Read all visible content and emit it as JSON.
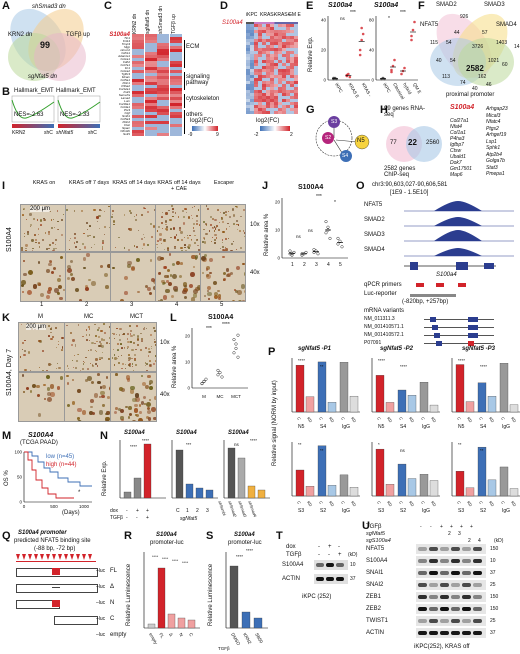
{
  "panels": {
    "A": {
      "label": "A",
      "sets": [
        "shSmad3 dn",
        "KRN2 dn",
        "TGFβ up",
        "sgNfat5 dn"
      ],
      "center": "99"
    },
    "B": {
      "label": "B",
      "titles": [
        "Hallmark_EMT",
        "Hallmark_EMT"
      ],
      "nes": [
        "NES=-2.63",
        "NES=-2.33"
      ],
      "sub": [
        "KRN2",
        "shC",
        "shNfat5",
        "shC"
      ]
    },
    "C": {
      "label": "C",
      "cols": [
        "KRN2 dn",
        "sgNfat5 dn",
        "shSmad3 dn",
        "TGFβ up"
      ],
      "genes": [
        "S100a4",
        "Tln1",
        "Krt14",
        "Timp3",
        "Mgp",
        "Hmcn2",
        "Cdh11",
        "Adamts1",
        "Col1a1",
        "Cdh2",
        "Col7a1",
        "Fn1",
        "Col1a2",
        "Tgfbr3",
        "Mcam",
        "Col5a1",
        "Fbln1",
        "P4ha2",
        "Col12a1",
        "Fstl1",
        "Sema7a",
        "Lama2",
        "Lum",
        "Col16a1",
        "Col3a1",
        "Ptx3",
        "Ctgf",
        "Sntb1",
        "Col5a3",
        "Fbln2",
        "Ctsk",
        "Sparc",
        "Ofml2b",
        "Sulf1"
      ],
      "groups": [
        "ECM",
        "signaling pathway",
        "cytoskeleton",
        "others"
      ],
      "scale": {
        "title": "log2(FC)",
        "min": "-9",
        "max": "9"
      }
    },
    "D": {
      "label": "D",
      "cols": [
        "iKPC",
        "KRAS-",
        "KRAS+",
        "GM E"
      ],
      "gene": "S100a4",
      "scale": {
        "title": "log2(FC)",
        "min": "-2",
        "max": "2"
      }
    },
    "E": {
      "label": "E",
      "title": "S100a4",
      "ylabel": "Relative Exp.",
      "left": {
        "cats": [
          "iKPC",
          "KRAS E",
          "KRAS -"
        ],
        "ticks": [
          "0",
          "20",
          "40"
        ]
      },
      "right": {
        "cats": [
          "iKPC",
          "Classical",
          "hybrid",
          "QM E"
        ],
        "ticks": [
          "0",
          "40",
          "80"
        ]
      },
      "sig": [
        "ns",
        "***",
        "*",
        "***"
      ]
    },
    "F": {
      "label": "F",
      "sets": [
        "SMAD2",
        "SMAD3",
        "NFAT5",
        "SMAD4"
      ],
      "numbers": [
        "926",
        "44",
        "57",
        "115",
        "54",
        "3726",
        "1403",
        "14",
        "40",
        "54",
        "2582",
        "1021",
        "113",
        "162",
        "60",
        "74",
        "40",
        "46"
      ],
      "center": "2582",
      "caption": "proximal promoter"
    },
    "G": {
      "label": "G",
      "nodes": [
        "S3",
        "S2",
        "N5",
        "S4"
      ]
    },
    "H": {
      "label": "H",
      "top": "99 genes RNA-seq",
      "left": "77",
      "mid": "22",
      "right": "2560",
      "bottom": "2582 genes ChIP-seq",
      "genes1": [
        "S100a4",
        "Col27a1",
        "Nfat4",
        "Col1a1",
        "P4ha3",
        "Igfbp7",
        "Ctsw",
        "Ubald1",
        "Dok7",
        "Gm17501",
        "Map6"
      ],
      "genes2": [
        "Arhgap23",
        "Mical3",
        "Nfatc4",
        "Ptgs2",
        "Arhgef19",
        "Lsp1",
        "Sphk1",
        "Atp2b4",
        "Golga7b",
        "Stat3",
        "Pmepa1"
      ]
    },
    "I": {
      "label": "I",
      "cols": [
        "KRAS on",
        "KRAS off 7 days",
        "KRAS off 14 days",
        "KRAS off 14 days + CAE",
        "Escaper"
      ],
      "scale": "200 μm",
      "row": "S100A4",
      "mag": [
        "10x",
        "40x"
      ],
      "nums": [
        "1",
        "2",
        "3",
        "4",
        "5"
      ]
    },
    "J": {
      "label": "J",
      "title": "S100A4",
      "ylabel": "Relative area %",
      "ticks": [
        "0",
        "10",
        "20"
      ],
      "cats": [
        "1",
        "2",
        "3",
        "4",
        "5"
      ],
      "sig": [
        "ns",
        "ns",
        "***",
        "*"
      ]
    },
    "K": {
      "label": "K",
      "cols": [
        "M",
        "MC",
        "MCT"
      ],
      "scale": "200 μm",
      "row": "S100A4, Day 7",
      "mag": [
        "10x",
        "40x"
      ]
    },
    "L": {
      "label": "L",
      "title": "S100A4",
      "ylabel": "Relative area %",
      "cats": [
        "M",
        "MC",
        "MCT"
      ],
      "ticks": [
        "0",
        "10",
        "20"
      ],
      "sig": [
        "***",
        "****"
      ]
    },
    "M": {
      "label": "M",
      "title": "S100A4",
      "sub": "(TCGA PAAD)",
      "ylabel": "OS %",
      "legend": [
        "low (n=45)",
        "high (n=44)"
      ],
      "ticks": [
        "0",
        "50",
        "100"
      ],
      "x": [
        "0",
        "500",
        "1000"
      ],
      "xlabel": "(Days)",
      "p": "*",
      "colors": {
        "low": "#3d6fb6",
        "high": "#d2232a"
      }
    },
    "N": {
      "label": "N",
      "titles": [
        "S100a4",
        "S100a4",
        "S100a4"
      ],
      "ylabel": "Relative Exp.",
      "row1": [
        "dox",
        "TGFβ"
      ],
      "signs": [
        "-",
        "+",
        "+",
        "-",
        "-",
        "+"
      ],
      "cats2": [
        "C",
        "1",
        "2",
        "3"
      ],
      "sub2": "sgNfat5",
      "cats3": [
        "shScmbl",
        "shSmad2",
        "shSmad3",
        "shSmad4"
      ],
      "sig": [
        "****",
        "****",
        "***",
        "ns",
        "****"
      ]
    },
    "O": {
      "label": "O",
      "locus": "chr3:90,603,027-90,606,581",
      "range": "[1E9 - 1.5E10]",
      "tracks": [
        "NFAT5",
        "SMAD2",
        "SMAD3",
        "SMAD4"
      ],
      "gene": "S100a4",
      "primers": "qPCR primers",
      "luc": "Luc-reporter",
      "lucRange": "(-820bp, +257bp)",
      "variants_title": "mRNA variants",
      "variants": [
        "NM_011311.3",
        "NM_001410571.1",
        "NM_001410572.1",
        "P07091"
      ]
    },
    "P": {
      "label": "P",
      "titles": [
        "sgNfat5 -P1",
        "sgNfat5 -P2",
        "sgNfat5 -P3"
      ],
      "ylabel": "Relative signal (NORM by input)",
      "ip1": [
        "N5",
        "S4",
        "IgG"
      ],
      "ip2": [
        "S3",
        "S2",
        "IgG"
      ],
      "ck": [
        "C",
        "KD"
      ],
      "sig": [
        "****",
        "**",
        "****",
        "****",
        "****",
        "****",
        "**",
        "**",
        "*",
        "ns",
        "**",
        "**"
      ]
    },
    "Q": {
      "label": "Q",
      "title": "S100a4 promoter",
      "sub": "predicted NFAT5 binding site",
      "site": "(-88 bp, -72 bp)",
      "constructs": [
        "FL",
        "Δ",
        "N",
        "C",
        "empty"
      ],
      "luc": "luc"
    },
    "R": {
      "label": "R",
      "title": "S100a4",
      "sub": "promoter-luc",
      "ylabel": "Relative Luminescence",
      "cats": [
        "empty",
        "FL",
        "Δ",
        "N",
        "C"
      ],
      "sig": [
        "****",
        "****",
        "****",
        "****"
      ]
    },
    "S": {
      "label": "S",
      "title": "S100a4",
      "sub": "promoter-luc",
      "ylabel": "Relative Luminescence",
      "cats": [
        "DMSO",
        "KRN2",
        "SB50"
      ],
      "row": "TGFβ",
      "sig": [
        "****",
        "****"
      ]
    },
    "T": {
      "label": "T",
      "rows": [
        "dox",
        "TGFβ"
      ],
      "signs": [
        "-",
        "+",
        "-",
        "-",
        "-",
        "+"
      ],
      "kd": "(kD)",
      "bands": [
        "S100A4",
        "ACTIN"
      ],
      "mw": [
        "10",
        "37"
      ],
      "cells": "iKPC (252)"
    },
    "U": {
      "label": "U",
      "rows": [
        "TGFβ",
        "sgNfat5",
        "sgS100a4"
      ],
      "marks": [
        "2",
        "3",
        "2",
        "4"
      ],
      "bands": [
        "NFAT5",
        "S100A4",
        "SNAI1",
        "SNAI2",
        "ZEB1",
        "ZEB2",
        "TWIST1",
        "ACTIN"
      ],
      "mw": [
        "150",
        "10",
        "37",
        "25",
        "150",
        "150",
        "25",
        "37"
      ],
      "kd": "(kD)",
      "cells": "iKPC(252), KRAS off"
    }
  }
}
